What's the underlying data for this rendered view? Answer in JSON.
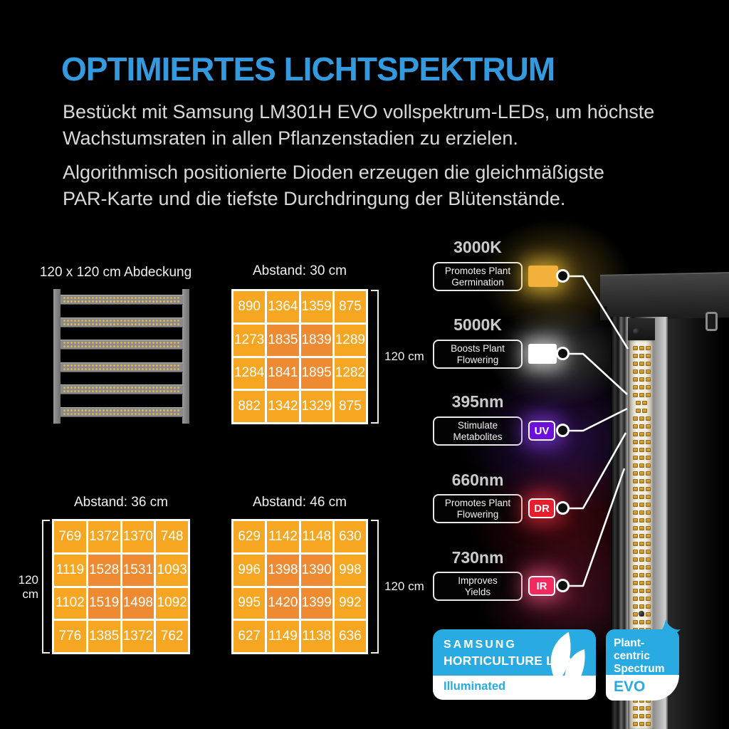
{
  "colors": {
    "accent_blue": "#339ADF",
    "badge_cyan": "#29ABE2",
    "par_cell": "#F6A620",
    "par_cell_hot": "#EE8A31"
  },
  "header": {
    "title": "OPTIMIERTES LICHTSPEKTRUM",
    "paragraph1_lines": [
      "Bestückt mit Samsung LM301H EVO vollspektrum-LEDs, um höchste",
      "Wachstumsraten in allen Pflanzenstadien zu erzielen."
    ],
    "paragraph2_lines": [
      "Algorithmisch positionierte Dioden erzeugen die gleichmäßigste",
      "PAR-Karte und die tiefste Durchdringung der Blütenstände."
    ]
  },
  "coverage_diagram": {
    "title": "120 x 120 cm Abdeckung",
    "bar_count": 6
  },
  "par_maps": [
    {
      "title": "Abstand: 30 cm",
      "dimension_label": "120 cm",
      "dimension_side": "right",
      "rows": [
        [
          890,
          1364,
          1359,
          875
        ],
        [
          1273,
          1835,
          1839,
          1289
        ],
        [
          1284,
          1841,
          1895,
          1282
        ],
        [
          882,
          1342,
          1329,
          875
        ]
      ]
    },
    {
      "title": "Abstand: 36 cm",
      "dimension_label": "120 cm",
      "dimension_side": "left",
      "rows": [
        [
          769,
          1372,
          1370,
          748
        ],
        [
          1119,
          1528,
          1531,
          1093
        ],
        [
          1102,
          1519,
          1498,
          1092
        ],
        [
          776,
          1385,
          1372,
          762
        ]
      ]
    },
    {
      "title": "Abstand: 46 cm",
      "dimension_label": "120 cm",
      "dimension_side": "right",
      "rows": [
        [
          629,
          1142,
          1148,
          630
        ],
        [
          996,
          1398,
          1390,
          998
        ],
        [
          995,
          1420,
          1399,
          992
        ],
        [
          627,
          1149,
          1138,
          636
        ]
      ]
    }
  ],
  "spectrum_callouts": [
    {
      "heading": "3000K",
      "benefit_lines": [
        "Promotes Plant",
        "Germination"
      ],
      "chip_label": "",
      "chip_color": "#F2B13A",
      "glow_color": "#F8C837"
    },
    {
      "heading": "5000K",
      "benefit_lines": [
        "Boosts Plant",
        "Flowering"
      ],
      "chip_label": "",
      "chip_color": "#FFFFFF",
      "glow_color": "#FFFFFF"
    },
    {
      "heading": "395nm",
      "benefit_lines": [
        "Stimulate",
        "Metabolites"
      ],
      "chip_label": "UV",
      "chip_color": "#6D10D8",
      "glow_color": "#8A3CF0"
    },
    {
      "heading": "660nm",
      "benefit_lines": [
        "Promotes Plant",
        "Flowering"
      ],
      "chip_label": "DR",
      "chip_color": "#E61E2D",
      "glow_color": "#F03040"
    },
    {
      "heading": "730nm",
      "benefit_lines": [
        "Improves",
        "Yields"
      ],
      "chip_label": "IR",
      "chip_color": "#F12A5F",
      "glow_color": "#F85585"
    }
  ],
  "badges": {
    "samsung": {
      "brand": "SAMSUNG",
      "product": "HORTICULTURE LED",
      "footer": "Illuminated",
      "color": "#29ABE2"
    },
    "evo": {
      "line1": "Plant-centric",
      "line2": "Spectrum",
      "footer": "EVO",
      "color": "#29ABE2"
    }
  }
}
